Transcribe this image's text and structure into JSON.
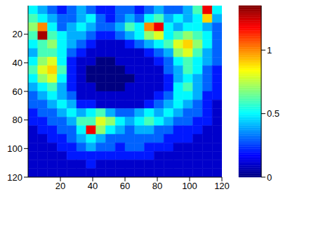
{
  "chart_data": {
    "type": "heatmap",
    "x": [
      3,
      9,
      15,
      21,
      27,
      33,
      39,
      45,
      51,
      57,
      63,
      69,
      75,
      81,
      87,
      93,
      99,
      105,
      111,
      117
    ],
    "y": [
      3,
      9,
      15,
      21,
      27,
      33,
      39,
      45,
      51,
      57,
      63,
      69,
      75,
      81,
      87,
      93,
      99,
      105,
      111,
      117
    ],
    "values": [
      [
        0.5,
        0.4,
        0.3,
        0.2,
        0.3,
        0.4,
        0.3,
        0.2,
        0.2,
        0.3,
        0.3,
        0.2,
        0.3,
        0.4,
        0.3,
        0.3,
        0.4,
        0.6,
        1.2,
        0.5
      ],
      [
        0.6,
        0.5,
        0.4,
        0.3,
        0.3,
        0.4,
        0.5,
        0.3,
        0.2,
        0.3,
        0.4,
        0.3,
        0.5,
        0.6,
        0.4,
        0.5,
        0.4,
        0.5,
        0.9,
        0.4
      ],
      [
        0.7,
        1.0,
        0.5,
        0.3,
        0.4,
        0.5,
        0.4,
        0.3,
        0.3,
        0.4,
        0.6,
        0.5,
        1.0,
        1.2,
        0.5,
        0.4,
        0.5,
        0.5,
        0.4,
        0.3
      ],
      [
        0.6,
        1.3,
        0.6,
        0.5,
        0.4,
        0.4,
        0.3,
        0.2,
        0.2,
        0.3,
        0.4,
        0.5,
        0.7,
        0.8,
        0.5,
        0.6,
        0.7,
        0.6,
        0.5,
        0.3
      ],
      [
        0.5,
        0.6,
        0.7,
        0.5,
        0.4,
        0.3,
        0.2,
        0.1,
        0.1,
        0.1,
        0.2,
        0.3,
        0.4,
        0.5,
        0.6,
        0.8,
        0.9,
        0.7,
        0.5,
        0.3
      ],
      [
        0.4,
        0.6,
        0.6,
        0.5,
        0.3,
        0.2,
        0.1,
        0.1,
        0.1,
        0.1,
        0.1,
        0.1,
        0.2,
        0.3,
        0.4,
        0.7,
        0.8,
        0.6,
        0.4,
        0.3
      ],
      [
        0.5,
        0.7,
        0.8,
        0.5,
        0.2,
        0.1,
        0.1,
        0.0,
        0.0,
        0.1,
        0.1,
        0.1,
        0.1,
        0.2,
        0.3,
        0.5,
        0.6,
        0.5,
        0.4,
        0.3
      ],
      [
        0.6,
        0.8,
        0.9,
        0.6,
        0.2,
        0.1,
        0.0,
        0.0,
        0.0,
        0.0,
        0.1,
        0.1,
        0.1,
        0.1,
        0.3,
        0.4,
        0.6,
        0.5,
        0.3,
        0.2
      ],
      [
        0.5,
        0.7,
        0.8,
        0.5,
        0.2,
        0.1,
        0.0,
        0.0,
        0.0,
        0.0,
        0.0,
        0.1,
        0.1,
        0.1,
        0.2,
        0.4,
        0.5,
        0.4,
        0.3,
        0.2
      ],
      [
        0.4,
        0.5,
        0.6,
        0.4,
        0.2,
        0.1,
        0.1,
        0.0,
        0.0,
        0.0,
        0.1,
        0.1,
        0.1,
        0.1,
        0.2,
        0.5,
        0.6,
        0.4,
        0.3,
        0.2
      ],
      [
        0.3,
        0.4,
        0.5,
        0.4,
        0.3,
        0.1,
        0.1,
        0.1,
        0.1,
        0.1,
        0.1,
        0.1,
        0.1,
        0.2,
        0.3,
        0.5,
        0.5,
        0.4,
        0.2,
        0.2
      ],
      [
        0.3,
        0.3,
        0.4,
        0.5,
        0.4,
        0.2,
        0.2,
        0.1,
        0.1,
        0.1,
        0.1,
        0.1,
        0.2,
        0.3,
        0.4,
        0.5,
        0.4,
        0.3,
        0.2,
        0.1
      ],
      [
        0.2,
        0.3,
        0.3,
        0.4,
        0.5,
        0.4,
        0.5,
        0.6,
        0.4,
        0.3,
        0.3,
        0.4,
        0.5,
        0.4,
        0.5,
        0.4,
        0.3,
        0.3,
        0.2,
        0.1
      ],
      [
        0.2,
        0.2,
        0.3,
        0.3,
        0.4,
        0.6,
        0.6,
        0.8,
        0.7,
        0.5,
        0.4,
        0.5,
        0.6,
        0.5,
        0.4,
        0.3,
        0.3,
        0.2,
        0.2,
        0.1
      ],
      [
        0.1,
        0.2,
        0.2,
        0.3,
        0.3,
        0.5,
        1.2,
        0.7,
        0.5,
        0.4,
        0.3,
        0.4,
        0.4,
        0.3,
        0.3,
        0.2,
        0.2,
        0.2,
        0.1,
        0.1
      ],
      [
        0.1,
        0.1,
        0.2,
        0.2,
        0.3,
        0.4,
        0.5,
        0.4,
        0.3,
        0.3,
        0.3,
        0.3,
        0.3,
        0.3,
        0.2,
        0.2,
        0.2,
        0.1,
        0.1,
        0.1
      ],
      [
        0.1,
        0.1,
        0.1,
        0.2,
        0.2,
        0.3,
        0.4,
        0.3,
        0.3,
        0.2,
        0.3,
        0.3,
        0.2,
        0.2,
        0.2,
        0.1,
        0.1,
        0.1,
        0.1,
        0.1
      ],
      [
        0.1,
        0.1,
        0.1,
        0.1,
        0.2,
        0.2,
        0.2,
        0.2,
        0.2,
        0.2,
        0.2,
        0.2,
        0.2,
        0.1,
        0.1,
        0.1,
        0.1,
        0.1,
        0.1,
        0.1
      ],
      [
        0.1,
        0.1,
        0.1,
        0.1,
        0.1,
        0.1,
        0.2,
        0.1,
        0.1,
        0.1,
        0.1,
        0.1,
        0.1,
        0.1,
        0.1,
        0.1,
        0.1,
        0.1,
        0.1,
        0.1
      ],
      [
        0.1,
        0.1,
        0.1,
        0.1,
        0.1,
        0.1,
        0.1,
        0.1,
        0.1,
        0.1,
        0.1,
        0.1,
        0.1,
        0.1,
        0.1,
        0.1,
        0.1,
        0.1,
        0.1,
        0.1
      ]
    ],
    "xlim": [
      0,
      120
    ],
    "ylim": [
      0,
      120
    ],
    "xticks": [
      20,
      40,
      60,
      80,
      100,
      120
    ],
    "yticks": [
      20,
      40,
      60,
      80,
      100,
      120
    ],
    "colorbar": {
      "range": [
        0,
        1.35
      ],
      "ticks": [
        0,
        0.5,
        1
      ]
    }
  }
}
